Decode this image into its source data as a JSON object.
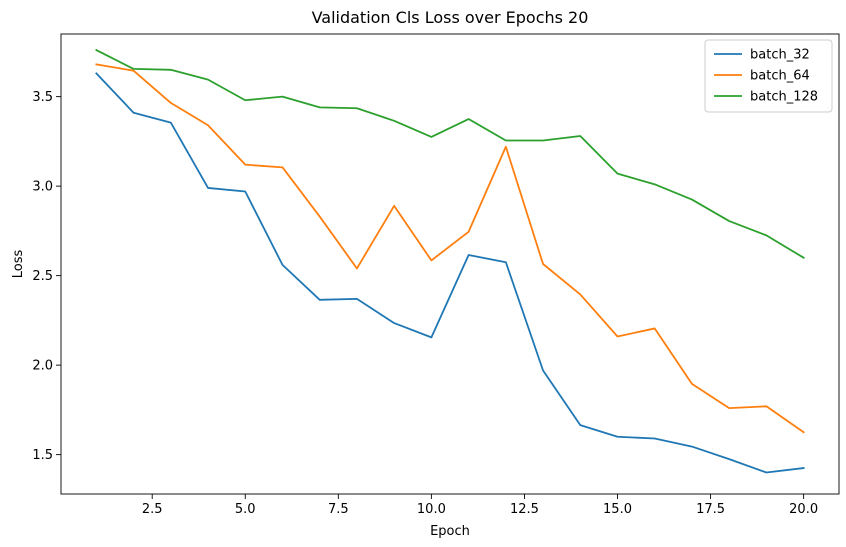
{
  "chart_data": {
    "type": "line",
    "title": "Validation Cls Loss over Epochs 20",
    "xlabel": "Epoch",
    "ylabel": "Loss",
    "xlim": [
      0.05,
      20.95
    ],
    "ylim": [
      1.28,
      3.85
    ],
    "xticks": [
      2.5,
      5.0,
      7.5,
      10.0,
      12.5,
      15.0,
      17.5,
      20.0
    ],
    "xtick_labels": [
      "2.5",
      "5.0",
      "7.5",
      "10.0",
      "12.5",
      "15.0",
      "17.5",
      "20.0"
    ],
    "yticks": [
      1.5,
      2.0,
      2.5,
      3.0,
      3.5
    ],
    "ytick_labels": [
      "1.5",
      "2.0",
      "2.5",
      "3.0",
      "3.5"
    ],
    "grid": false,
    "legend_position": "top-right",
    "x": [
      1,
      2,
      3,
      4,
      5,
      6,
      7,
      8,
      9,
      10,
      11,
      12,
      13,
      14,
      15,
      16,
      17,
      18,
      19,
      20
    ],
    "series": [
      {
        "name": "batch_32",
        "color": "#1f77b4",
        "values": [
          3.63,
          3.41,
          3.355,
          2.99,
          2.97,
          2.56,
          2.365,
          2.37,
          2.235,
          2.155,
          2.615,
          2.575,
          1.97,
          1.665,
          1.6,
          1.59,
          1.545,
          1.475,
          1.4,
          1.425
        ]
      },
      {
        "name": "batch_64",
        "color": "#ff7f0e",
        "values": [
          3.68,
          3.645,
          3.465,
          3.34,
          3.12,
          3.105,
          2.83,
          2.54,
          2.89,
          2.585,
          2.745,
          3.22,
          2.565,
          2.395,
          2.16,
          2.205,
          1.895,
          1.76,
          1.77,
          1.625
        ]
      },
      {
        "name": "batch_128",
        "color": "#2ca02c",
        "values": [
          3.76,
          3.655,
          3.65,
          3.595,
          3.48,
          3.5,
          3.44,
          3.435,
          3.365,
          3.275,
          3.375,
          3.255,
          3.255,
          3.28,
          3.07,
          3.01,
          2.925,
          2.805,
          2.725,
          2.6
        ]
      }
    ]
  }
}
